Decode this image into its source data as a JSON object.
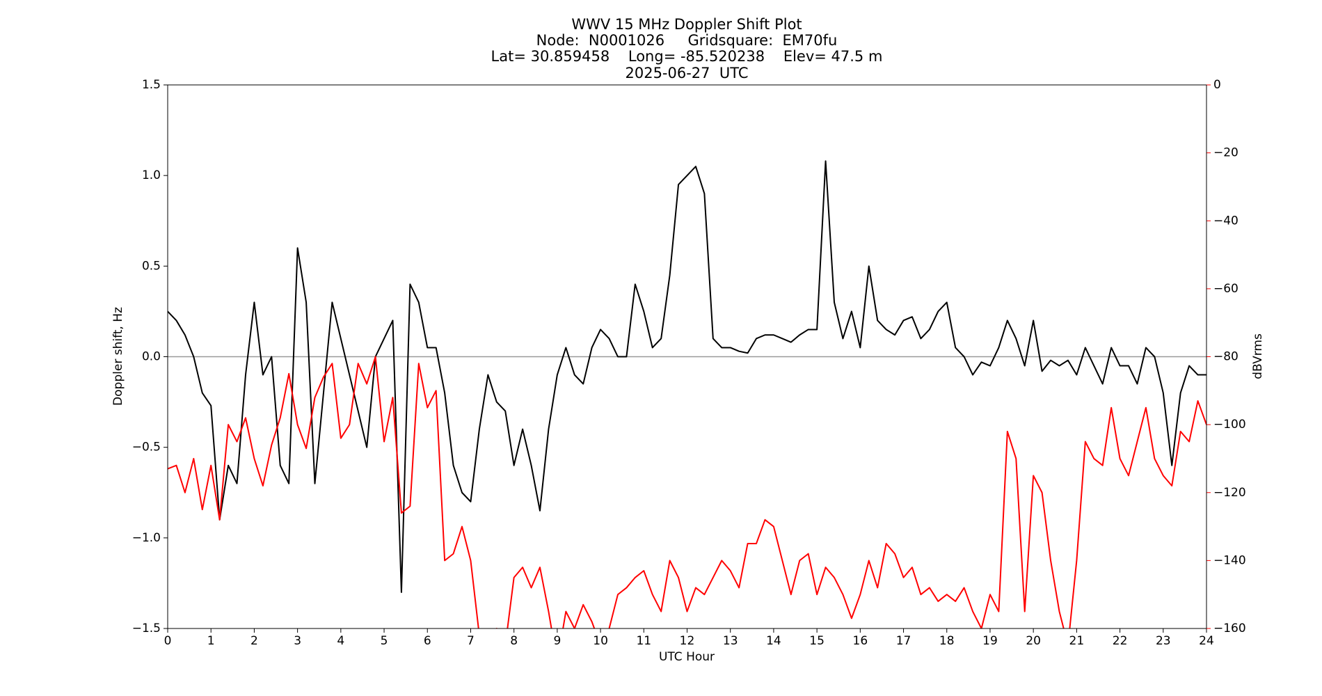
{
  "chart_data": {
    "type": "line",
    "title": [
      "WWV 15 MHz Doppler Shift Plot",
      "Node:  N0001026     Gridsquare:  EM70fu",
      "Lat= 30.859458    Long= -85.520238    Elev= 47.5 m",
      "2025-06-27  UTC"
    ],
    "xlabel": "UTC Hour",
    "ylabel": "Doppler shift, Hz",
    "y2label": "dBVrms",
    "y2color": "#ff0000",
    "x": [
      0,
      0.2,
      0.4,
      0.6,
      0.8,
      1,
      1.2,
      1.4,
      1.6,
      1.8,
      2,
      2.2,
      2.4,
      2.6,
      2.8,
      3,
      3.2,
      3.4,
      3.6,
      3.8,
      4,
      4.2,
      4.4,
      4.6,
      4.8,
      5,
      5.2,
      5.4,
      5.6,
      5.8,
      6,
      6.2,
      6.4,
      6.6,
      6.8,
      7,
      7.2,
      7.4,
      7.6,
      7.8,
      8,
      8.2,
      8.4,
      8.6,
      8.8,
      9,
      9.2,
      9.4,
      9.6,
      9.8,
      10,
      10.2,
      10.4,
      10.6,
      10.8,
      11,
      11.2,
      11.4,
      11.6,
      11.8,
      12,
      12.2,
      12.4,
      12.6,
      12.8,
      13,
      13.2,
      13.4,
      13.6,
      13.8,
      14,
      14.2,
      14.4,
      14.6,
      14.8,
      15,
      15.2,
      15.4,
      15.6,
      15.8,
      16,
      16.2,
      16.4,
      16.6,
      16.8,
      17,
      17.2,
      17.4,
      17.6,
      17.8,
      18,
      18.2,
      18.4,
      18.6,
      18.8,
      19,
      19.2,
      19.4,
      19.6,
      19.8,
      20,
      20.2,
      20.4,
      20.6,
      20.8,
      21,
      21.2,
      21.4,
      21.6,
      21.8,
      22,
      22.2,
      22.4,
      22.6,
      22.8,
      23,
      23.2,
      23.4,
      23.6,
      23.8,
      24
    ],
    "series": [
      {
        "name": "Doppler shift",
        "color": "#000000",
        "axis": "y",
        "values": [
          0.25,
          0.2,
          0.12,
          0.0,
          -0.2,
          -0.27,
          -0.9,
          -0.6,
          -0.7,
          -0.1,
          0.3,
          -0.1,
          0.0,
          -0.6,
          -0.7,
          0.6,
          0.3,
          -0.7,
          -0.2,
          0.3,
          0.1,
          -0.1,
          -0.3,
          -0.5,
          0.0,
          0.1,
          0.2,
          -1.3,
          0.4,
          0.3,
          0.05,
          0.05,
          -0.2,
          -0.6,
          -0.75,
          -0.8,
          -0.4,
          -0.1,
          -0.25,
          -0.3,
          -0.6,
          -0.4,
          -0.6,
          -0.85,
          -0.4,
          -0.1,
          0.05,
          -0.1,
          -0.15,
          0.05,
          0.15,
          0.1,
          0.0,
          0.0,
          0.4,
          0.25,
          0.05,
          0.1,
          0.45,
          0.95,
          1.0,
          1.05,
          0.9,
          0.1,
          0.05,
          0.05,
          0.03,
          0.02,
          0.1,
          0.12,
          0.12,
          0.1,
          0.08,
          0.12,
          0.15,
          0.15,
          1.08,
          0.3,
          0.1,
          0.25,
          0.05,
          0.5,
          0.2,
          0.15,
          0.12,
          0.2,
          0.22,
          0.1,
          0.15,
          0.25,
          0.3,
          0.05,
          0.0,
          -0.1,
          -0.03,
          -0.05,
          0.05,
          0.2,
          0.1,
          -0.05,
          0.2,
          -0.08,
          -0.02,
          -0.05,
          -0.02,
          -0.1,
          0.05,
          -0.05,
          -0.15,
          0.05,
          -0.05,
          -0.05,
          -0.15,
          0.05,
          0.0,
          -0.2,
          -0.6,
          -0.2,
          -0.05,
          -0.1,
          -0.1
        ]
      },
      {
        "name": "dBVrms",
        "color": "#ff0000",
        "axis": "y2",
        "values": [
          -113,
          -112,
          -120,
          -110,
          -125,
          -112,
          -128,
          -100,
          -105,
          -98,
          -110,
          -118,
          -106,
          -98,
          -85,
          -100,
          -107,
          -92,
          -86,
          -82,
          -104,
          -100,
          -82,
          -88,
          -80,
          -105,
          -92,
          -126,
          -124,
          -82,
          -95,
          -90,
          -140,
          -138,
          -130,
          -140,
          -162,
          -162,
          -160,
          -165,
          -145,
          -142,
          -148,
          -142,
          -155,
          -170,
          -155,
          -160,
          -153,
          -158,
          -165,
          -160,
          -150,
          -148,
          -145,
          -143,
          -150,
          -155,
          -140,
          -145,
          -155,
          -148,
          -150,
          -145,
          -140,
          -143,
          -148,
          -135,
          -135,
          -128,
          -130,
          -140,
          -150,
          -140,
          -138,
          -150,
          -142,
          -145,
          -150,
          -157,
          -150,
          -140,
          -148,
          -135,
          -138,
          -145,
          -142,
          -150,
          -148,
          -152,
          -150,
          -152,
          -148,
          -155,
          -160,
          -150,
          -155,
          -102,
          -110,
          -155,
          -115,
          -120,
          -140,
          -155,
          -165,
          -140,
          -105,
          -110,
          -112,
          -95,
          -110,
          -115,
          -105,
          -95,
          -110,
          -115,
          -118,
          -102,
          -105,
          -93,
          -100
        ]
      }
    ],
    "xlim": [
      0,
      24
    ],
    "xticks": [
      0,
      1,
      2,
      3,
      4,
      5,
      6,
      7,
      8,
      9,
      10,
      11,
      12,
      13,
      14,
      15,
      16,
      17,
      18,
      19,
      20,
      21,
      22,
      23,
      24
    ],
    "ylim": [
      -1.5,
      1.5
    ],
    "yticks": [
      {
        "value": -1.5,
        "label": "−1.5"
      },
      {
        "value": -1.0,
        "label": "−1.0"
      },
      {
        "value": -0.5,
        "label": "−0.5"
      },
      {
        "value": 0.0,
        "label": "0.0"
      },
      0.5,
      {
        "value": 1.0,
        "label": "1.0"
      },
      1.5
    ],
    "y2lim": [
      -160,
      0
    ],
    "y2ticks": [
      {
        "value": -160,
        "label": "−160"
      },
      {
        "value": -140,
        "label": "−140"
      },
      {
        "value": -120,
        "label": "−120"
      },
      {
        "value": -100,
        "label": "−100"
      },
      {
        "value": -80,
        "label": "−80"
      },
      {
        "value": -60,
        "label": "−60"
      },
      {
        "value": -40,
        "label": "−40"
      },
      {
        "value": -20,
        "label": "−20"
      },
      0
    ],
    "reference_line": 0
  }
}
